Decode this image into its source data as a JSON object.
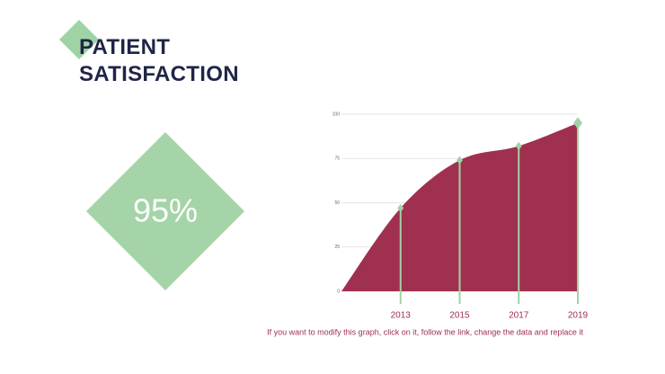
{
  "slide": {
    "title": "PATIENT SATISFACTION",
    "stat": "95%",
    "note": "If you want to modify this graph, click on it, follow the link, change the data and replace it"
  },
  "chart_data": {
    "type": "area",
    "categories": [
      null,
      "2013",
      "2015",
      "2017",
      "2019"
    ],
    "values": [
      0,
      47,
      74,
      82,
      95
    ],
    "color": "#a0304f",
    "marker_color": "#9fd3a5",
    "ylim": [
      0,
      100
    ],
    "yticks": [
      0,
      25,
      50,
      75,
      100
    ],
    "grid": true
  }
}
